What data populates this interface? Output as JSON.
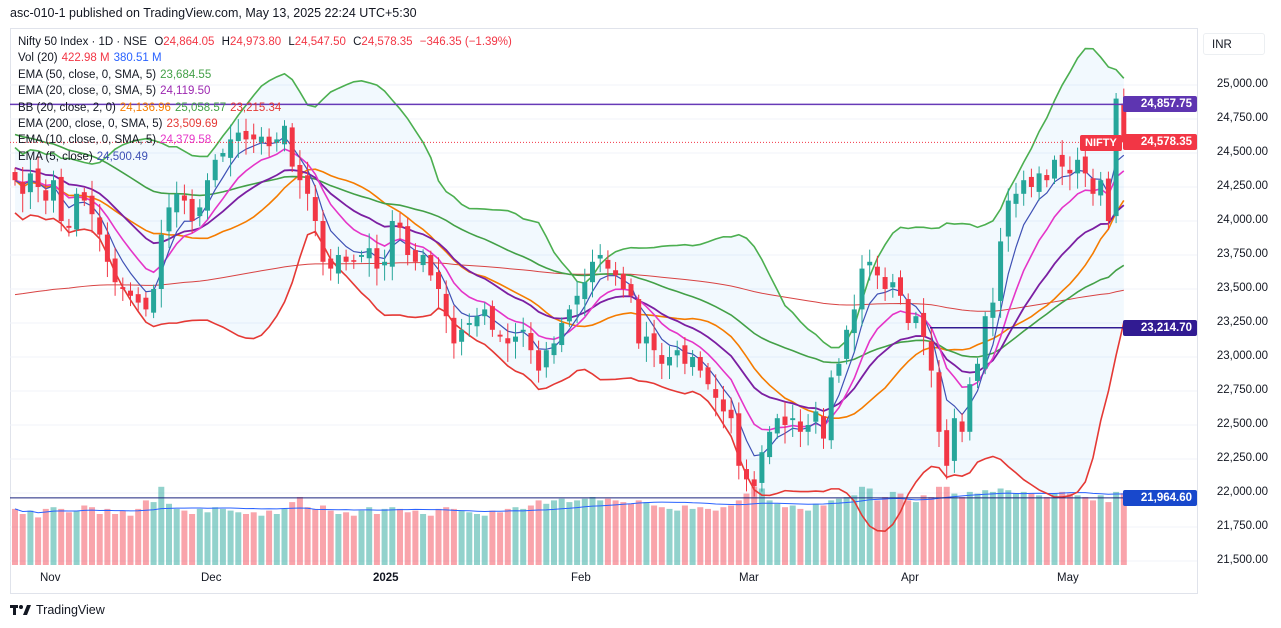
{
  "header": {
    "published": "asc-010-1 published on TradingView.com, May 13, 2025 22:24 UTC+5:30"
  },
  "legend": {
    "symbol": "Nifty 50 Index · 1D · NSE",
    "o_label": "O",
    "o": "24,864.05",
    "h_label": "H",
    "h": "24,973.80",
    "l_label": "L",
    "l": "24,547.50",
    "c_label": "C",
    "c": "24,578.35",
    "change": "−346.35 (−1.39%)",
    "vol_label": "Vol (20)",
    "vol": "422.98 M",
    "vol_ma": "380.51 M",
    "ema50_label": "EMA (50, close, 0, SMA, 5)",
    "ema50": "23,684.55",
    "ema20_label": "EMA (20, close, 0, SMA, 5)",
    "ema20": "24,119.50",
    "bb_label": "BB (20, close, 2, 0)",
    "bb_basis": "24,136.96",
    "bb_upper": "25,058.57",
    "bb_lower": "23,215.34",
    "ema200_label": "EMA (200, close, 0, SMA, 5)",
    "ema200": "23,509.69",
    "ema10_label": "EMA (10, close, 0, SMA, 5)",
    "ema10": "24,379.58",
    "ema5_label": "EMA (5, close)",
    "ema5": "24,500.49"
  },
  "axis": {
    "currency": "INR",
    "symbol_tag": "NIFTY",
    "ticks": [
      "25,000.00",
      "24,750.00",
      "24,500.00",
      "24,250.00",
      "24,000.00",
      "23,750.00",
      "23,500.00",
      "23,250.00",
      "23,000.00",
      "22,750.00",
      "22,500.00",
      "22,250.00",
      "22,000.00",
      "21,750.00",
      "21,500.00"
    ],
    "last_price": "24,578.35",
    "hline1": "24,857.75",
    "hline2": "23,214.70",
    "hline3": "21,964.60"
  },
  "time_labels": [
    "Nov",
    "Dec",
    "2025",
    "Feb",
    "Mar",
    "Apr",
    "May"
  ],
  "footer": {
    "brand": "TradingView"
  },
  "colors": {
    "up": "#26a69a",
    "down": "#f23645",
    "ema5": "#3f51b5",
    "ema10": "#e535c8",
    "ema20": "#7b1fa2",
    "ema50": "#43a047",
    "ema200": "#d84343",
    "bb_upper": "#4caf50",
    "bb_basis": "#f57c00",
    "bb_lower": "#e53935",
    "hline1": "#673ab7",
    "hline2": "#311b92",
    "hline3": "#1a237e"
  },
  "chart_data": {
    "type": "candlestick",
    "title": "Nifty 50 Index · 1D · NSE",
    "ylim": [
      21500,
      25000
    ],
    "last_ohlc": {
      "open": 24864.05,
      "high": 24973.8,
      "low": 24547.5,
      "close": 24578.35
    },
    "horizontal_lines": [
      24857.75,
      23214.7,
      21964.6
    ],
    "close": [
      24300,
      24200,
      24350,
      24250,
      24150,
      24300,
      24000,
      23950,
      24200,
      24150,
      24050,
      23900,
      23700,
      23550,
      23500,
      23450,
      23400,
      23350,
      23500,
      23900,
      24100,
      24200,
      24150,
      24000,
      24100,
      24300,
      24450,
      24500,
      24600,
      24650,
      24600,
      24600,
      24620,
      24550,
      24600,
      24700,
      24400,
      24300,
      24200,
      24000,
      23700,
      23650,
      23750,
      23700,
      23700,
      23750,
      23800,
      23650,
      23700,
      24000,
      23950,
      23750,
      23700,
      23750,
      23600,
      23500,
      23300,
      23100,
      23200,
      23250,
      23300,
      23350,
      23200,
      23150,
      23100,
      23150,
      23200,
      23050,
      22900,
      23050,
      23100,
      23250,
      23350,
      23450,
      23550,
      23700,
      23750,
      23650,
      23600,
      23500,
      23450,
      23100,
      23150,
      23050,
      22950,
      23000,
      23050,
      22950,
      23000,
      22900,
      22800,
      22700,
      22600,
      22550,
      22200,
      22100,
      22050,
      22300,
      22450,
      22550,
      22500,
      22550,
      22450,
      22500,
      22600,
      22400,
      22850,
      22950,
      23200,
      23350,
      23650,
      23700,
      23600,
      23500,
      23550,
      23450,
      23250,
      23300,
      23150,
      22900,
      22450,
      22200,
      22550,
      22450,
      22800,
      22950,
      23300,
      23400,
      23850,
      24150,
      24200,
      24300,
      24250,
      24350,
      24300,
      24450,
      24400,
      24350,
      24450,
      24350,
      24200,
      24300,
      24000,
      24900,
      24578.35
    ],
    "volume_m": [
      330,
      300,
      320,
      280,
      330,
      340,
      330,
      310,
      320,
      350,
      340,
      300,
      330,
      300,
      320,
      290,
      330,
      380,
      370,
      460,
      360,
      330,
      320,
      300,
      330,
      310,
      340,
      330,
      320,
      310,
      300,
      310,
      290,
      320,
      300,
      330,
      370,
      400,
      340,
      330,
      350,
      320,
      300,
      310,
      290,
      320,
      340,
      300,
      330,
      340,
      330,
      310,
      320,
      300,
      290,
      330,
      340,
      330,
      320,
      310,
      300,
      290,
      320,
      310,
      330,
      340,
      330,
      350,
      380,
      360,
      380,
      390,
      370,
      380,
      390,
      400,
      380,
      390,
      380,
      370,
      360,
      380,
      370,
      350,
      340,
      330,
      320,
      350,
      330,
      340,
      330,
      320,
      340,
      350,
      380,
      420,
      460,
      450,
      380,
      360,
      340,
      350,
      330,
      320,
      360,
      350,
      380,
      390,
      400,
      410,
      460,
      450,
      380,
      400,
      430,
      420,
      380,
      370,
      410,
      400,
      460,
      460,
      420,
      400,
      430,
      420,
      440,
      430,
      450,
      440,
      420,
      430,
      420,
      410,
      400,
      420,
      430,
      420,
      410,
      400,
      380,
      410,
      370,
      430,
      422.98
    ]
  }
}
